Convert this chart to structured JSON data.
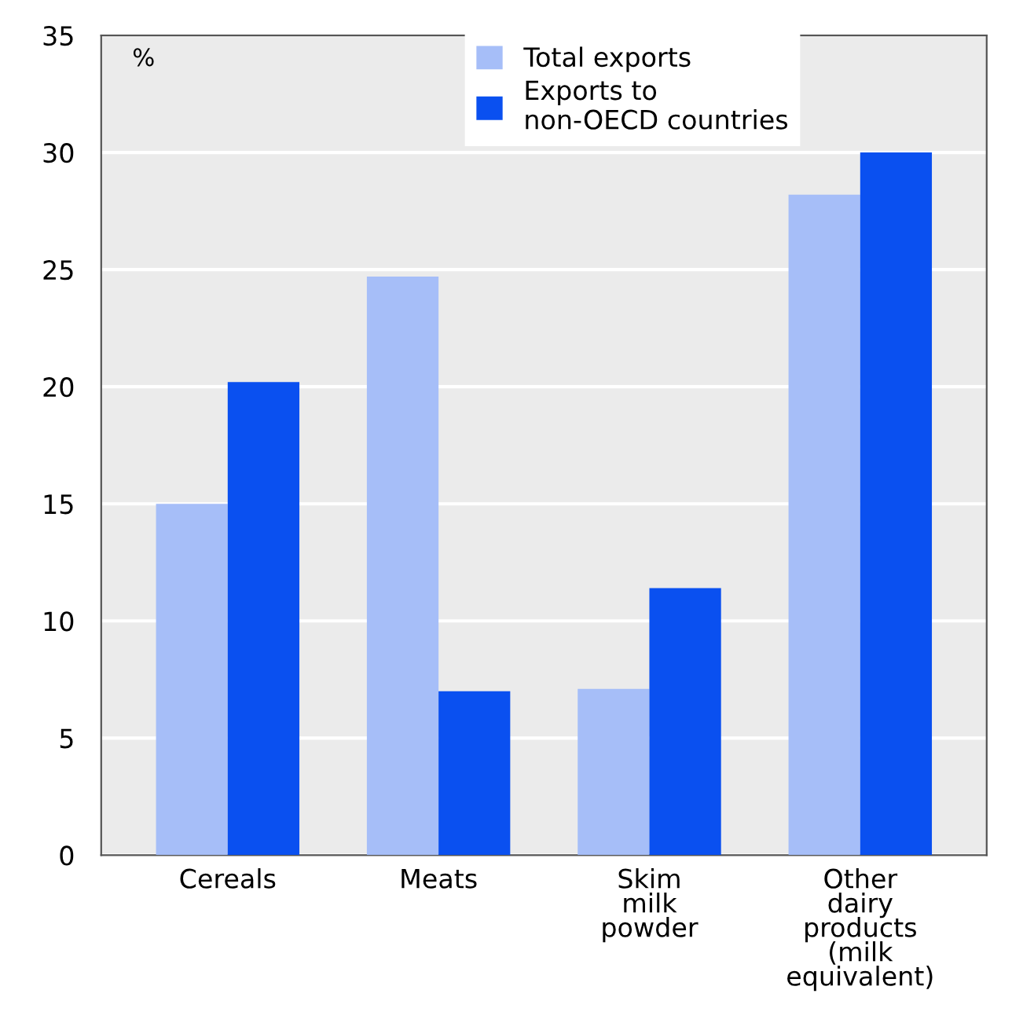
{
  "chart_data": {
    "type": "bar",
    "ylabel": "%",
    "categories": [
      "Cereals",
      "Meats",
      "Skim\nmilk\npowder",
      "Other\ndairy\nproducts\n(milk\nequivalent)"
    ],
    "series": [
      {
        "name": "Total exports",
        "color": "#a6bef8",
        "values": [
          15.0,
          24.7,
          7.1,
          28.2
        ]
      },
      {
        "name": "Exports to\nnon-OECD countries",
        "color": "#0a50f0",
        "values": [
          20.2,
          7.0,
          11.4,
          30.0
        ]
      }
    ],
    "ylim": [
      0,
      35
    ],
    "yticks": [
      0,
      5,
      10,
      15,
      20,
      25,
      30,
      35
    ],
    "grid": "y",
    "legend": "top"
  }
}
